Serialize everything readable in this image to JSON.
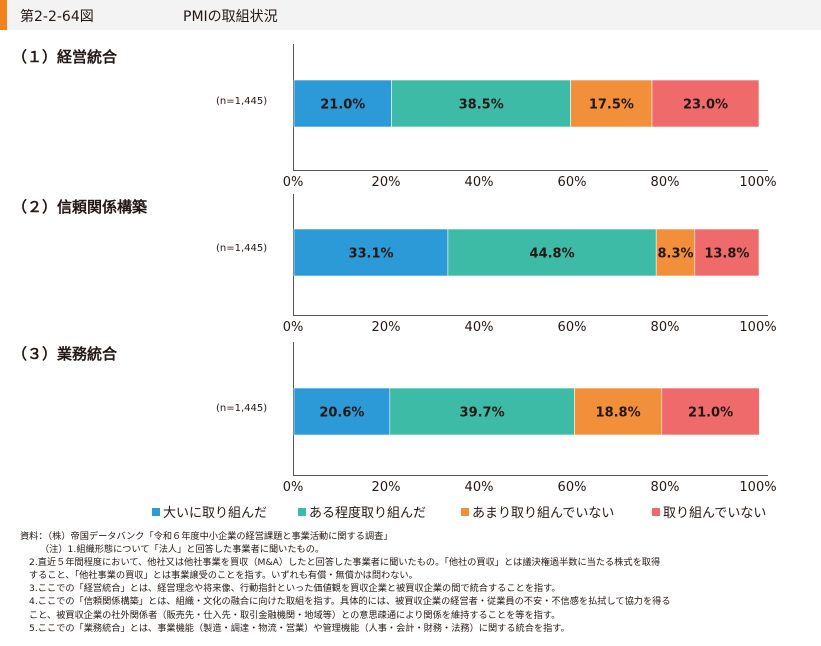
{
  "header": {
    "figure_no": "第2-2-64図",
    "title": "PMIの取組状況"
  },
  "chart_data": {
    "type": "bar",
    "stacked": true,
    "orientation": "horizontal",
    "xlim": [
      0,
      100
    ],
    "x_ticks": [
      "0%",
      "20%",
      "40%",
      "60%",
      "80%",
      "100%"
    ],
    "series_names": [
      "大いに取り組んだ",
      "ある程度取り組んだ",
      "あまり取り組んでいない",
      "取り組んでいない"
    ],
    "colors": [
      "#2b9ad6",
      "#3dbba7",
      "#f28f3b",
      "#ef6a6a"
    ],
    "legend_position": "bottom",
    "panels": [
      {
        "title": "（１）経営統合",
        "category": "(n=1,445)",
        "values": [
          21.0,
          38.5,
          17.5,
          23.0
        ],
        "labels": [
          "21.0%",
          "38.5%",
          "17.5%",
          "23.0%"
        ]
      },
      {
        "title": "（２）信頼関係構築",
        "category": "(n=1,445)",
        "values": [
          33.1,
          44.8,
          8.3,
          13.8
        ],
        "labels": [
          "33.1%",
          "44.8%",
          "8.3%",
          "13.8%"
        ]
      },
      {
        "title": "（３）業務統合",
        "category": "(n=1,445)",
        "values": [
          20.6,
          39.7,
          18.8,
          21.0
        ],
        "labels": [
          "20.6%",
          "39.7%",
          "18.8%",
          "21.0%"
        ]
      }
    ]
  },
  "notes": [
    "資料：（株）帝国データバンク「令和６年度中小企業の経営課題と事業活動に関する調査」",
    "（注）1.組織形態について「法人」と回答した事業者に聞いたもの。",
    "2.直近５年間程度において、他社又は他社事業を買収（M&A）したと回答した事業者に聞いたもの。「他社の買収」とは議決権過半数に当たる株式を取得",
    "すること、「他社事業の買収」とは事業譲受のことを指す。いずれも有償・無償かは問わない。",
    "3.ここでの「経営統合」とは、経営理念や将来像、行動指針といった価値観を買収企業と被買収企業の間で統合することを指す。",
    "4.ここでの「信頼関係構築」とは、組織・文化の融合に向けた取組を指す。具体的には、被買収企業の経営者・従業員の不安・不信感を払拭して協力を得る",
    "こと、被買収企業の社外関係者（販売先・仕入先・取引金融機関・地域等）との意思疎通により関係を維持することを等を指す。",
    "5.ここでの「業務統合」とは、事業機能（製造・調達・物流・営業）や管理機能（人事・会計・財務・法務）に関する統合を指す。"
  ]
}
